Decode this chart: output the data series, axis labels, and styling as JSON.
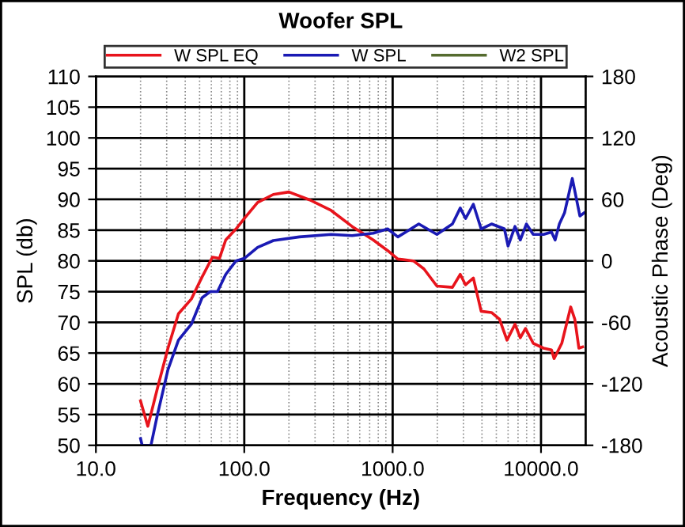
{
  "chart_data": {
    "type": "line",
    "title": "Woofer SPL",
    "xlabel": "Frequency (Hz)",
    "ylabel": "SPL (db)",
    "y2label": "Acoustic Phase (Deg)",
    "log": "x",
    "grid": true,
    "legend": "top",
    "line_style": "solid",
    "xlim": [
      10,
      20000
    ],
    "xticks": [
      {
        "value": 10,
        "label": "10.0"
      },
      {
        "value": 100,
        "label": "100.0"
      },
      {
        "value": 1000,
        "label": "1000.0"
      },
      {
        "value": 10000,
        "label": "10000.0"
      }
    ],
    "ylim": [
      50,
      110
    ],
    "yticks": [
      50,
      55,
      60,
      65,
      70,
      75,
      80,
      85,
      90,
      95,
      100,
      105,
      110
    ],
    "y2lim": [
      -180,
      180
    ],
    "y2ticks": [
      -180,
      -120,
      -60,
      0,
      60,
      120,
      180
    ],
    "series": [
      {
        "name": "W SPL EQ",
        "color": "#e8141c",
        "x": [
          20,
          22.4,
          26,
          30.6,
          36,
          44,
          52,
          61,
          68,
          75,
          88,
          100,
          123,
          157,
          200,
          277,
          385,
          533,
          740,
          922,
          1084,
          1380,
          1624,
          1987,
          2530,
          2856,
          3100,
          3500,
          3950,
          4640,
          5250,
          5900,
          6680,
          7250,
          7860,
          8860,
          10400,
          11770,
          12250,
          13810,
          15850,
          16900,
          18000,
          19060
        ],
        "values": [
          57.2,
          53.1,
          59.3,
          65.8,
          71.4,
          73.8,
          77.4,
          80.6,
          80.4,
          83.4,
          85.2,
          86.9,
          89.5,
          90.8,
          91.2,
          89.9,
          88.2,
          85.6,
          83.4,
          81.7,
          80.3,
          80,
          78.7,
          75.9,
          75.7,
          77.8,
          76.1,
          77.2,
          71.8,
          71.6,
          70.5,
          67.1,
          69.7,
          67.5,
          69,
          66.6,
          65.8,
          65.5,
          64.1,
          66.6,
          72.5,
          70.5,
          65.8,
          66
        ]
      },
      {
        "name": "W SPL",
        "color": "#1a1ab4",
        "x": [
          20,
          20.5,
          23.5,
          26,
          30.6,
          36,
          44,
          52,
          59,
          66,
          75,
          88,
          100,
          123,
          157,
          235,
          385,
          533,
          740,
          926,
          1084,
          1500,
          1987,
          2530,
          2856,
          3100,
          3500,
          3950,
          4640,
          5670,
          6000,
          6680,
          7250,
          7970,
          8860,
          10400,
          11770,
          12450,
          13300,
          14400,
          16250,
          18280,
          19500
        ],
        "values": [
          51.1,
          50,
          50,
          55,
          62.3,
          67.1,
          69.7,
          74,
          75,
          75,
          77.8,
          80,
          80.4,
          82.2,
          83.3,
          83.9,
          84.3,
          84.1,
          84.5,
          85.2,
          83.9,
          86,
          84.3,
          86,
          88.6,
          86.9,
          89.2,
          85.2,
          86,
          85.2,
          82.4,
          85.6,
          83.4,
          86,
          84.3,
          84.3,
          84.7,
          83.4,
          86,
          87.8,
          93.4,
          87.3,
          87.8
        ]
      },
      {
        "name": "W2 SPL",
        "color": "#556b2f"
      }
    ]
  }
}
